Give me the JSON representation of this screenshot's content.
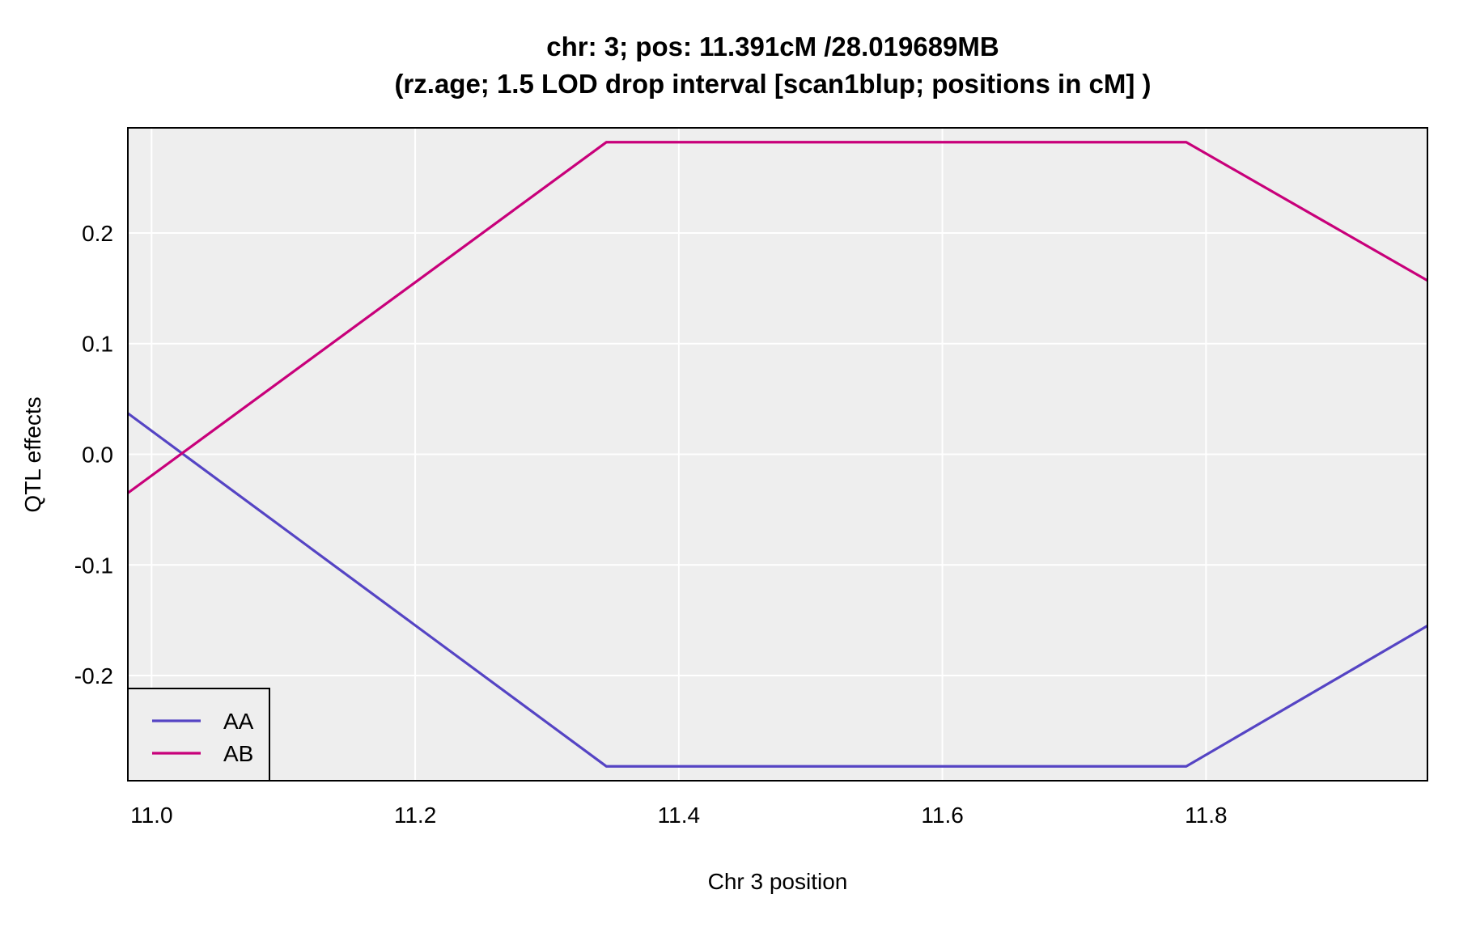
{
  "chart_data": {
    "type": "line",
    "title": "chr: 3; pos: 11.391cM /28.019689MB",
    "subtitle": "(rz.age; 1.5 LOD drop interval [scan1blup; positions in cM] )",
    "xlabel": "Chr 3 position",
    "ylabel": "QTL effects",
    "xlim": [
      10.982,
      11.968
    ],
    "ylim": [
      -0.295,
      0.295
    ],
    "x_ticks": [
      11.0,
      11.2,
      11.4,
      11.6,
      11.8
    ],
    "x_tick_labels": [
      "11.0",
      "11.2",
      "11.4",
      "11.6",
      "11.8"
    ],
    "y_ticks": [
      -0.2,
      -0.1,
      0.0,
      0.1,
      0.2
    ],
    "y_tick_labels": [
      "-0.2",
      "-0.1",
      "0.0",
      "0.1",
      "0.2"
    ],
    "grid": true,
    "legend_position": "bottom-left",
    "background_color": "#eeeeee",
    "grid_color": "#ffffff",
    "series": [
      {
        "name": "AA",
        "color": "#5544c4",
        "x": [
          10.982,
          11.345,
          11.785,
          11.968
        ],
        "y": [
          0.037,
          -0.282,
          -0.282,
          -0.155
        ]
      },
      {
        "name": "AB",
        "color": "#c8007a",
        "x": [
          10.982,
          11.345,
          11.785,
          11.968
        ],
        "y": [
          -0.035,
          0.282,
          0.282,
          0.157
        ]
      }
    ]
  }
}
